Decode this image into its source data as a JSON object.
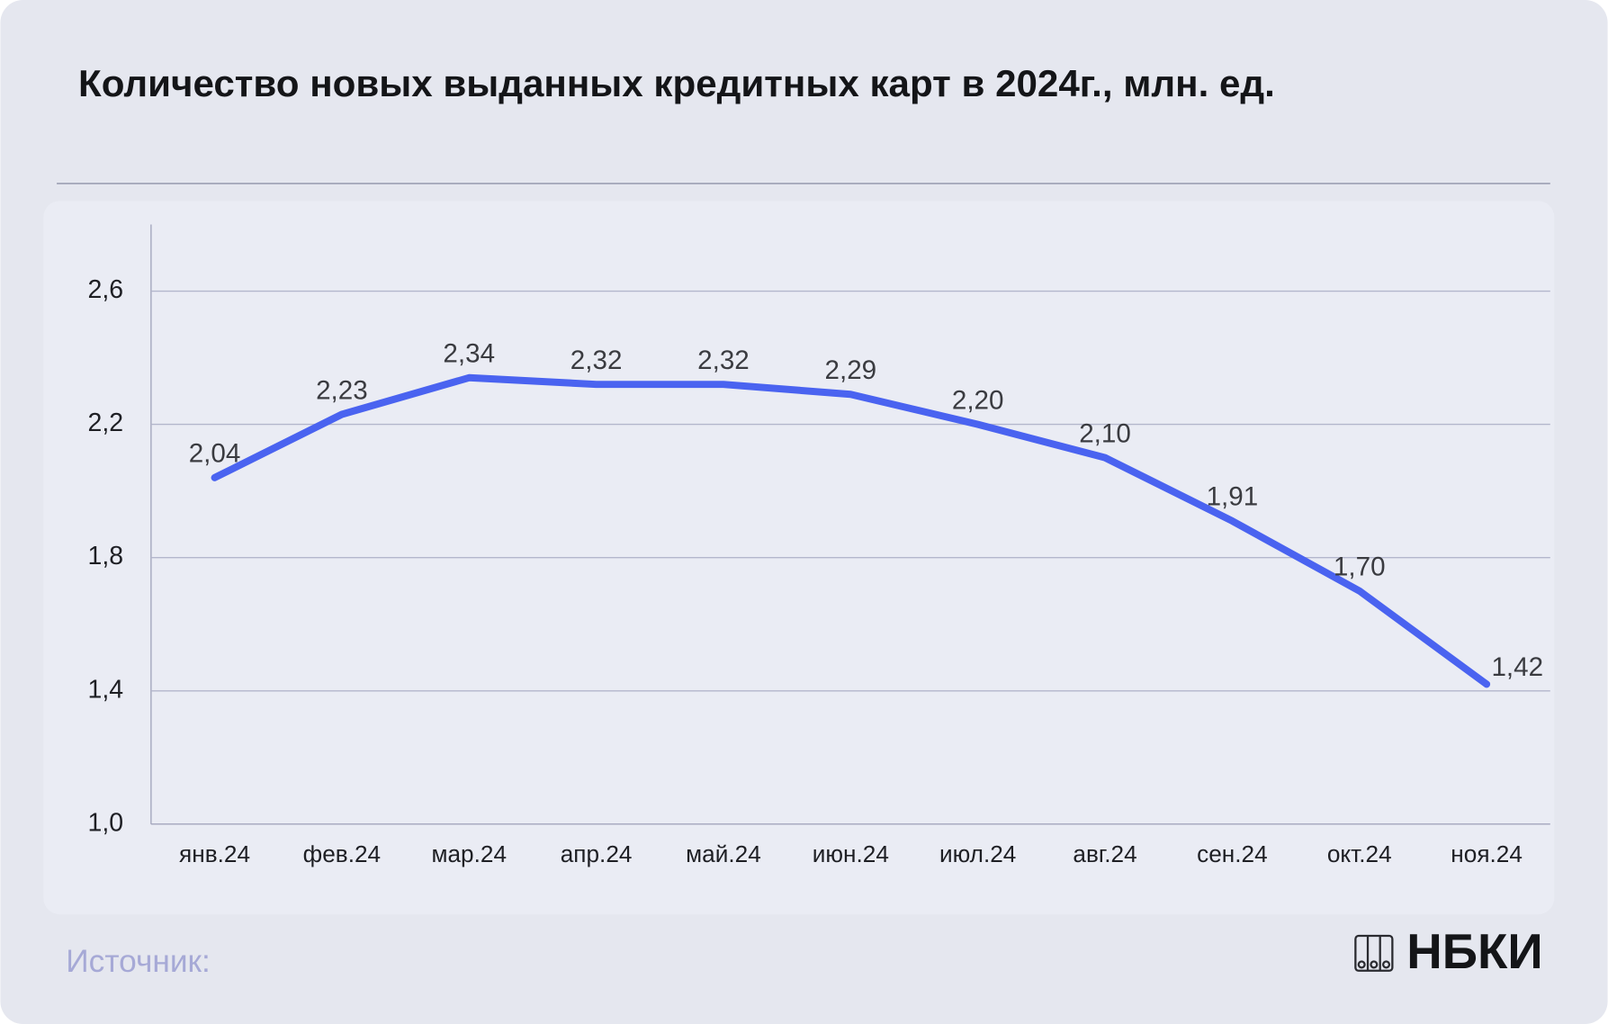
{
  "chart_data": {
    "type": "line",
    "title": "Количество новых выданных кредитных карт в 2024г., млн. ед.",
    "categories": [
      "янв.24",
      "фев.24",
      "мар.24",
      "апр.24",
      "май.24",
      "июн.24",
      "июл.24",
      "авг.24",
      "сен.24",
      "окт.24",
      "ноя.24"
    ],
    "series": [
      {
        "color": "#4a63f0",
        "values": [
          2.04,
          2.23,
          2.34,
          2.32,
          2.32,
          2.29,
          2.2,
          2.1,
          1.91,
          1.7,
          1.42
        ],
        "value_labels": [
          "2,04",
          "2,23",
          "2,34",
          "2,32",
          "2,32",
          "2,29",
          "2,20",
          "2,10",
          "1,91",
          "1,70",
          "1,42"
        ]
      }
    ],
    "ylim": [
      1.0,
      2.8
    ],
    "yticks": [
      {
        "value": 1.0,
        "label": "1,0"
      },
      {
        "value": 1.4,
        "label": "1,4"
      },
      {
        "value": 1.8,
        "label": "1,8"
      },
      {
        "value": 2.2,
        "label": "2,2"
      },
      {
        "value": 2.6,
        "label": "2,6"
      }
    ],
    "grid": true,
    "source": "Источник:",
    "logo": "НБКИ"
  }
}
